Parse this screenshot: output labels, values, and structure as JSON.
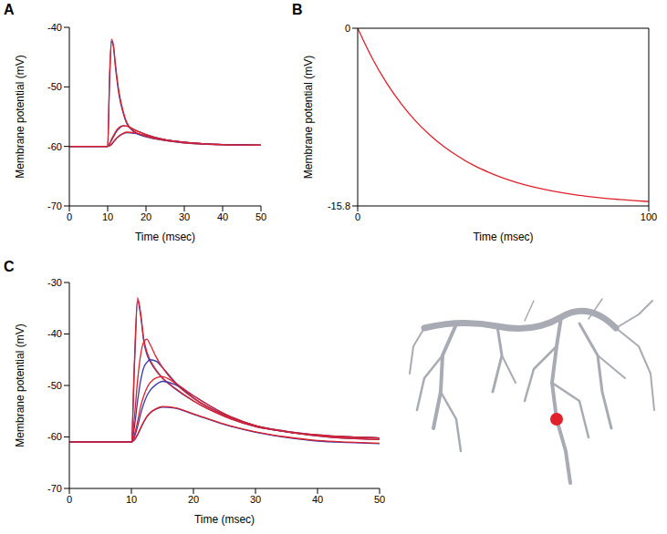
{
  "chart_data": [
    {
      "type": "line",
      "panel": "A",
      "x_label": "Time (msec)",
      "y_label": "Membrane potential (mV)",
      "x": [
        0,
        5,
        10,
        10.5,
        11,
        11.5,
        12,
        13,
        14,
        15,
        17,
        20,
        25,
        30,
        40,
        50
      ],
      "xlim": [
        0,
        50
      ],
      "xticks": [
        0,
        10,
        20,
        30,
        40,
        50
      ],
      "ylim": [
        -70,
        -40
      ],
      "yticks": [
        -70,
        -60,
        -50,
        -40
      ],
      "series": [
        {
          "color": "#3b3ba8",
          "values": [
            -60,
            -60,
            -60,
            -49,
            -42.3,
            -43.2,
            -46.5,
            -51.5,
            -54.3,
            -56.2,
            -57.6,
            -58.4,
            -59,
            -59.4,
            -59.7,
            -59.8
          ]
        },
        {
          "color": "#e0202a",
          "values": [
            -60,
            -60,
            -60,
            -48,
            -42,
            -43,
            -46,
            -51,
            -54,
            -56,
            -57.5,
            -58.3,
            -59,
            -59.4,
            -59.7,
            -59.8
          ]
        },
        {
          "color": "#3b3ba8",
          "values": [
            -60,
            -60,
            -60,
            -59.6,
            -59,
            -58.4,
            -57.8,
            -57,
            -56.6,
            -56.6,
            -57.2,
            -58,
            -58.9,
            -59.3,
            -59.7,
            -59.8
          ]
        },
        {
          "color": "#e0202a",
          "values": [
            -60,
            -60,
            -60,
            -59.5,
            -58.8,
            -58.2,
            -57.6,
            -56.8,
            -56.5,
            -56.6,
            -57.2,
            -58,
            -58.9,
            -59.3,
            -59.7,
            -59.8
          ]
        },
        {
          "color": "#3b3ba8",
          "values": [
            -60,
            -60,
            -60,
            -59.9,
            -59.7,
            -59.3,
            -58.9,
            -58.3,
            -57.9,
            -57.7,
            -57.8,
            -58.2,
            -58.9,
            -59.3,
            -59.7,
            -59.8
          ]
        },
        {
          "color": "#e0202a",
          "values": [
            -60,
            -60,
            -60,
            -59.9,
            -59.6,
            -59.2,
            -58.8,
            -58.2,
            -57.8,
            -57.6,
            -57.7,
            -58.2,
            -58.9,
            -59.3,
            -59.7,
            -59.8
          ]
        }
      ]
    },
    {
      "type": "line",
      "panel": "B",
      "x_label": "Time (msec)",
      "y_label": "Membrane potential (mV)",
      "x": [
        0,
        5,
        10,
        15,
        20,
        25,
        30,
        35,
        40,
        45,
        50,
        55,
        60,
        65,
        70,
        75,
        80,
        85,
        90,
        95,
        100
      ],
      "xlim": [
        0,
        100
      ],
      "xticks": [
        0,
        100
      ],
      "ylim": [
        -15.8,
        0
      ],
      "yticks": [
        -15.8,
        0
      ],
      "series": [
        {
          "color": "#e0202a",
          "values": [
            0,
            -2.67,
            -4.89,
            -6.73,
            -8.27,
            -9.54,
            -10.6,
            -11.47,
            -12.21,
            -12.81,
            -13.32,
            -13.74,
            -14.09,
            -14.38,
            -14.62,
            -14.82,
            -14.98,
            -15.12,
            -15.23,
            -15.33,
            -15.41
          ]
        }
      ]
    },
    {
      "type": "line",
      "panel": "C",
      "x_label": "Time (msec)",
      "y_label": "Membrane potential (mV)",
      "x": [
        0,
        5,
        10,
        10.5,
        11,
        11.5,
        12,
        12.5,
        13,
        14,
        15,
        17,
        20,
        25,
        30,
        35,
        40,
        45,
        50
      ],
      "xlim": [
        0,
        50
      ],
      "xticks": [
        0,
        10,
        20,
        30,
        40,
        50
      ],
      "ylim": [
        -70,
        -30
      ],
      "yticks": [
        -70,
        -60,
        -50,
        -40,
        -30
      ],
      "series": [
        {
          "color": "#3b3ba8",
          "values": [
            -61,
            -61,
            -61,
            -46,
            -33.5,
            -36.5,
            -41.5,
            -44,
            -45.3,
            -47.2,
            -48.6,
            -50.6,
            -53,
            -56,
            -58,
            -59,
            -59.7,
            -60,
            -60.2
          ]
        },
        {
          "color": "#e0202a",
          "values": [
            -61,
            -61,
            -61,
            -45,
            -33,
            -36,
            -41,
            -43.5,
            -45,
            -47,
            -48.5,
            -50.5,
            -53,
            -56,
            -58,
            -59,
            -59.7,
            -60,
            -60.2
          ]
        },
        {
          "color": "#3b3ba8",
          "values": [
            -61,
            -61,
            -61,
            -58,
            -53,
            -49,
            -46.5,
            -45.5,
            -45,
            -45.3,
            -46.5,
            -49.3,
            -52.4,
            -55.7,
            -57.8,
            -58.9,
            -59.6,
            -60,
            -60.2
          ]
        },
        {
          "color": "#e0202a",
          "values": [
            -61,
            -61,
            -61,
            -56,
            -49,
            -44,
            -41.5,
            -41,
            -42,
            -44.5,
            -46.5,
            -49.5,
            -52.5,
            -55.8,
            -57.8,
            -58.9,
            -59.6,
            -60,
            -60.2
          ]
        },
        {
          "color": "#3b3ba8",
          "values": [
            -61,
            -61,
            -61,
            -60,
            -58,
            -55.5,
            -53.5,
            -52,
            -51,
            -49.8,
            -49.2,
            -49.8,
            -52,
            -55.5,
            -57.8,
            -59,
            -59.8,
            -60.3,
            -60.5
          ]
        },
        {
          "color": "#e0202a",
          "values": [
            -61,
            -61,
            -61,
            -59.5,
            -57,
            -54,
            -52,
            -50.5,
            -49.5,
            -48.5,
            -48.3,
            -49.5,
            -52,
            -55.5,
            -57.8,
            -59,
            -59.8,
            -60.3,
            -60.5
          ]
        },
        {
          "color": "#3b3ba8",
          "values": [
            -61,
            -61,
            -61,
            -60.6,
            -59.6,
            -58.3,
            -57.1,
            -56.1,
            -55.4,
            -54.6,
            -54.2,
            -54.4,
            -55.6,
            -57.6,
            -59.1,
            -60.1,
            -60.8,
            -61.1,
            -61.3
          ]
        },
        {
          "color": "#e0202a",
          "values": [
            -61,
            -61,
            -61,
            -60.5,
            -59.5,
            -58.2,
            -57,
            -56,
            -55.3,
            -54.5,
            -54.1,
            -54.3,
            -55.5,
            -57.5,
            -59,
            -60,
            -60.7,
            -61,
            -61.2
          ]
        }
      ]
    }
  ]
}
